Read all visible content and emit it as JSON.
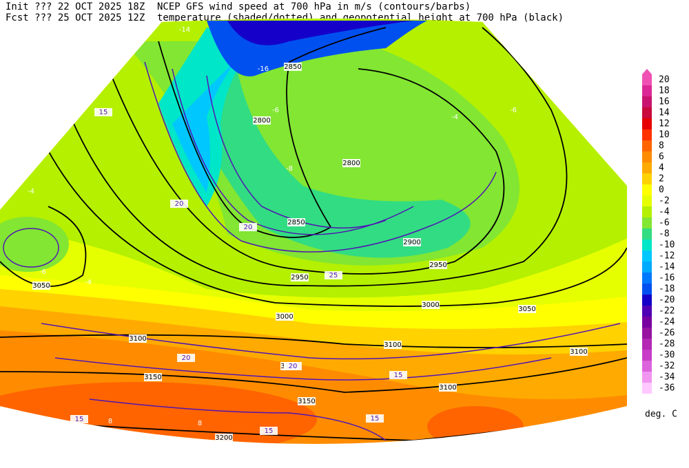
{
  "header": {
    "init": "Init  ??? 22 OCT 2025 18Z",
    "title1": "NCEP GFS wind speed at 700 hPa in m/s (contours/barbs)",
    "fcst": "Fcst ??? 25 OCT 2025 12Z",
    "title2": "temperature (shaded/dotted) and geopotential height at 700 hPa (black)"
  },
  "colorbar": {
    "levels": [
      20,
      18,
      16,
      14,
      12,
      10,
      8,
      6,
      4,
      2,
      0,
      -2,
      -4,
      -6,
      -8,
      -10,
      -12,
      -14,
      -16,
      -18,
      -20,
      -22,
      -24,
      -26,
      -28,
      -30,
      -32,
      -34,
      -36
    ],
    "colors": [
      "#f050b4",
      "#dc2896",
      "#c8146e",
      "#c80a3c",
      "#e60000",
      "#ff3200",
      "#ff6400",
      "#ff8c00",
      "#ffaa00",
      "#ffd200",
      "#ffff00",
      "#e6ff00",
      "#b4f000",
      "#82e632",
      "#32dc82",
      "#00e6c8",
      "#00c8ff",
      "#00aaff",
      "#0078ff",
      "#0050f0",
      "#1400c8",
      "#5000b4",
      "#7800a0",
      "#9614a0",
      "#b428b4",
      "#c83cc8",
      "#dc64dc",
      "#f096f0",
      "#ffc8ff"
    ],
    "unit": "deg. C"
  },
  "map_labels": [
    "2850",
    "2800",
    "2800",
    "2850",
    "2900",
    "2950",
    "2950",
    "3000",
    "3000",
    "3050",
    "3050",
    "3100",
    "3100",
    "3100",
    "3150",
    "3150",
    "3100",
    "3100",
    "3200",
    "15",
    "20",
    "20",
    "25",
    "20",
    "15",
    "15",
    "15",
    "15",
    "20",
    "-4",
    "-6",
    "-4",
    "-8",
    "-6",
    "-4",
    "-6",
    "8",
    "8",
    "6",
    "-14",
    "-16"
  ]
}
